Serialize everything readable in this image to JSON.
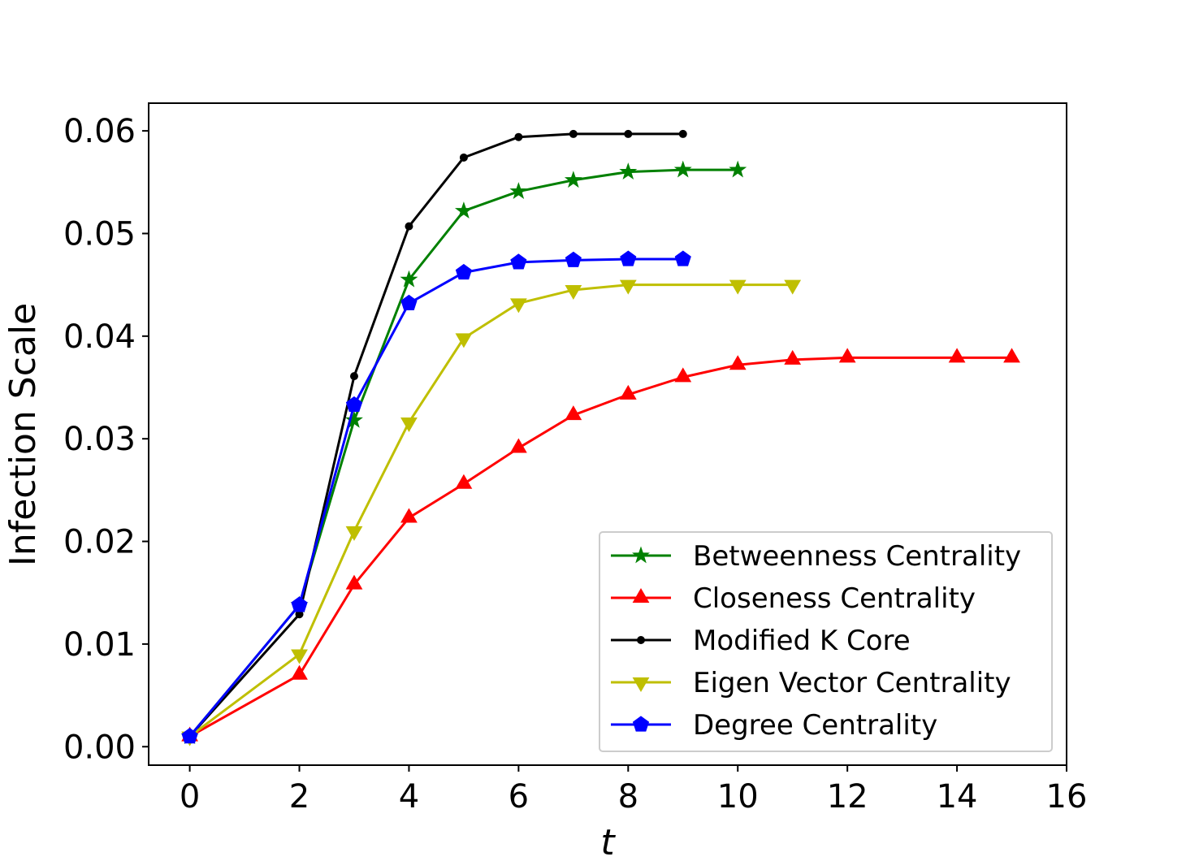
{
  "chart_data": {
    "type": "line",
    "title": "",
    "xlabel": "t",
    "ylabel": "Infection Scale",
    "xlim": [
      -0.75,
      16
    ],
    "ylim": [
      -0.0018,
      0.0627
    ],
    "xticks": [
      0,
      2,
      4,
      6,
      8,
      10,
      12,
      14,
      16
    ],
    "xtick_labels": [
      "0",
      "2",
      "4",
      "6",
      "8",
      "10",
      "12",
      "14",
      "16"
    ],
    "yticks": [
      0.0,
      0.01,
      0.02,
      0.03,
      0.04,
      0.05,
      0.06
    ],
    "ytick_labels": [
      "0.00",
      "0.01",
      "0.02",
      "0.03",
      "0.04",
      "0.05",
      "0.06"
    ],
    "grid": false,
    "legend_position": "lower-right",
    "series": [
      {
        "name": "Betweenness Centrality",
        "color": "#008000",
        "marker": "star",
        "x": [
          0,
          2,
          3,
          4,
          5,
          6,
          7,
          8,
          9,
          10
        ],
        "y": [
          0.001,
          0.0138,
          0.0318,
          0.0455,
          0.0522,
          0.0541,
          0.0552,
          0.056,
          0.0562,
          0.0562
        ]
      },
      {
        "name": "Closeness Centrality",
        "color": "#ff0000",
        "marker": "triangle-up",
        "x": [
          0,
          2,
          3,
          4,
          5,
          6,
          7,
          8,
          9,
          10,
          11,
          12,
          14,
          15
        ],
        "y": [
          0.001,
          0.007,
          0.0158,
          0.0223,
          0.0256,
          0.0291,
          0.0323,
          0.0343,
          0.036,
          0.0372,
          0.0377,
          0.0379,
          0.0379,
          0.0379
        ]
      },
      {
        "name": "Modified K Core",
        "color": "#000000",
        "marker": "dot",
        "x": [
          0,
          2,
          3,
          4,
          5,
          6,
          7,
          8,
          9
        ],
        "y": [
          0.001,
          0.0129,
          0.0361,
          0.0507,
          0.0574,
          0.0594,
          0.0597,
          0.0597,
          0.0597
        ]
      },
      {
        "name": "Eigen Vector Centrality",
        "color": "#bfbf00",
        "marker": "triangle-down",
        "x": [
          0,
          2,
          3,
          4,
          5,
          6,
          7,
          8,
          10,
          11
        ],
        "y": [
          0.001,
          0.009,
          0.021,
          0.0316,
          0.0398,
          0.0432,
          0.0445,
          0.045,
          0.045,
          0.045
        ]
      },
      {
        "name": "Degree Centrality",
        "color": "#0000ff",
        "marker": "pentagon",
        "x": [
          0,
          2,
          3,
          4,
          5,
          6,
          7,
          8,
          9
        ],
        "y": [
          0.001,
          0.0138,
          0.0333,
          0.0432,
          0.0462,
          0.0472,
          0.0474,
          0.0475,
          0.0475
        ]
      }
    ]
  }
}
